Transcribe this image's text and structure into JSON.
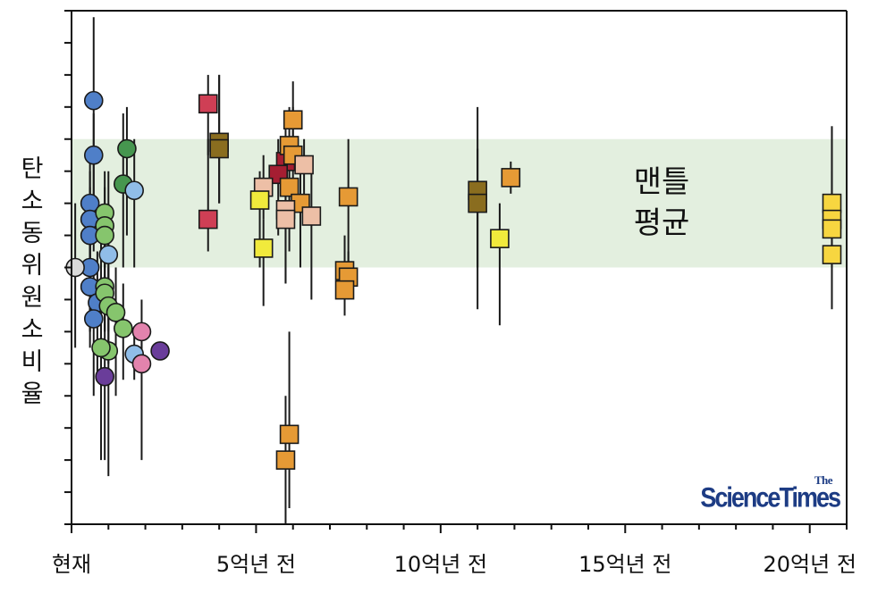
{
  "chart_data": {
    "type": "scatter",
    "title": "",
    "ylabel": "탄소동위원소비율",
    "ylabel_chars": [
      "탄",
      "소",
      "동",
      "위",
      "원",
      "소",
      "비",
      "율"
    ],
    "xlabel": "",
    "x_unit": "억년 전 (hundred million years ago)",
    "xlim": [
      0,
      21
    ],
    "ylim": [
      -8,
      8
    ],
    "y_ticks": [
      -8,
      -7,
      -6,
      -5,
      -4,
      -3,
      -2,
      -1,
      0,
      1,
      2,
      3,
      4,
      5,
      6,
      7,
      8
    ],
    "x_ticks": [
      {
        "x": 0,
        "label": "현재"
      },
      {
        "x": 5,
        "label": "5억년 전"
      },
      {
        "x": 10,
        "label": "10억년 전"
      },
      {
        "x": 15,
        "label": "15억년 전"
      },
      {
        "x": 20,
        "label": "20억년 전"
      }
    ],
    "band": {
      "y_min": 0,
      "y_max": 4,
      "label_lines": [
        "맨틀",
        "평균"
      ],
      "color": "#e3efdf"
    },
    "series": [
      {
        "marker": "circle",
        "color": "#4f7fc8",
        "points": [
          {
            "x": 0.6,
            "y": 5.2,
            "lo": 1.0,
            "hi": 7.8
          },
          {
            "x": 0.6,
            "y": 3.5,
            "lo": 0.5,
            "hi": 4.8
          },
          {
            "x": 0.5,
            "y": 2.0,
            "lo": 0.0,
            "hi": 3.5
          },
          {
            "x": 0.5,
            "y": 1.5,
            "lo": -1.0,
            "hi": 3.0
          },
          {
            "x": 0.5,
            "y": 1.0,
            "lo": -2.0,
            "hi": 2.5
          },
          {
            "x": 0.5,
            "y": 0.0,
            "lo": -2.0,
            "hi": 1.5
          },
          {
            "x": 0.5,
            "y": -0.6,
            "lo": -2.5,
            "hi": 1.0
          },
          {
            "x": 0.7,
            "y": -1.1,
            "lo": -3.5,
            "hi": 0.5
          },
          {
            "x": 0.6,
            "y": -1.6,
            "lo": -4.0,
            "hi": 0.0
          }
        ]
      },
      {
        "marker": "circle",
        "color": "#86c56d",
        "points": [
          {
            "x": 0.9,
            "y": 1.7,
            "lo": 0.0,
            "hi": 3.0
          },
          {
            "x": 0.9,
            "y": 1.3,
            "lo": 0.0,
            "hi": 2.5
          },
          {
            "x": 0.9,
            "y": 1.0,
            "lo": -0.5,
            "hi": 2.0
          },
          {
            "x": 0.9,
            "y": -0.6,
            "lo": -2.0,
            "hi": 0.5
          },
          {
            "x": 0.9,
            "y": -0.8,
            "lo": -2.0,
            "hi": 0.5
          },
          {
            "x": 1.0,
            "y": -1.2,
            "lo": -3.0,
            "hi": 0.0
          },
          {
            "x": 1.2,
            "y": -1.4,
            "lo": -4.0,
            "hi": 0.0
          },
          {
            "x": 1.4,
            "y": -1.9,
            "lo": -3.5,
            "hi": -0.5
          },
          {
            "x": 1.0,
            "y": -2.6,
            "lo": -6.5,
            "hi": 3.0
          },
          {
            "x": 0.8,
            "y": -2.5,
            "lo": -6.0,
            "hi": 1.0
          }
        ]
      },
      {
        "marker": "circle",
        "color": "#46964f",
        "points": [
          {
            "x": 1.5,
            "y": 3.7,
            "lo": 1.0,
            "hi": 5.0
          },
          {
            "x": 1.4,
            "y": 2.6,
            "lo": 0.0,
            "hi": 4.8
          }
        ]
      },
      {
        "marker": "circle",
        "color": "#90bde8",
        "points": [
          {
            "x": 1.7,
            "y": 2.4,
            "lo": 0.0,
            "hi": 4.0
          },
          {
            "x": 1.0,
            "y": 0.4,
            "lo": -2.0,
            "hi": 2.0
          },
          {
            "x": 1.7,
            "y": -2.7,
            "lo": -3.5,
            "hi": -2.0
          }
        ]
      },
      {
        "marker": "circle",
        "color": "#e283ad",
        "points": [
          {
            "x": 1.9,
            "y": -2.0,
            "lo": -3.0,
            "hi": -1.0
          },
          {
            "x": 1.9,
            "y": -3.0,
            "lo": -6.0,
            "hi": -2.0
          }
        ]
      },
      {
        "marker": "circle",
        "color": "#6a3d9a",
        "points": [
          {
            "x": 2.4,
            "y": -2.6,
            "lo": -2.6,
            "hi": -2.6
          },
          {
            "x": 0.9,
            "y": -3.4,
            "lo": -6.0,
            "hi": -1.0
          }
        ]
      },
      {
        "marker": "circle",
        "color": "#d9d9d9",
        "points": [
          {
            "x": 0.1,
            "y": 0.0,
            "lo": -2.5,
            "hi": 2.0
          }
        ]
      },
      {
        "marker": "square",
        "color": "#cf3f55",
        "points": [
          {
            "x": 3.7,
            "y": 5.1,
            "lo": 3.5,
            "hi": 6.0
          },
          {
            "x": 3.7,
            "y": 1.5,
            "lo": 0.5,
            "hi": 4.0
          }
        ]
      },
      {
        "marker": "square",
        "color": "#a51e32",
        "points": [
          {
            "x": 5.8,
            "y": 3.3,
            "lo": 2.5,
            "hi": 4.5
          },
          {
            "x": 5.6,
            "y": 2.9,
            "lo": 1.0,
            "hi": 4.0
          }
        ]
      },
      {
        "marker": "square",
        "color": "#8a6d1f",
        "points": [
          {
            "x": 4.0,
            "y": 3.9,
            "lo": 2.0,
            "hi": 6.0
          },
          {
            "x": 4.0,
            "y": 3.7,
            "lo": 2.0,
            "hi": 6.0
          },
          {
            "x": 11.0,
            "y": 2.4,
            "lo": -1.3,
            "hi": 3.7
          },
          {
            "x": 11.0,
            "y": 2.0,
            "lo": 0.0,
            "hi": 5.0
          }
        ]
      },
      {
        "marker": "square",
        "color": "#e69a35",
        "points": [
          {
            "x": 6.0,
            "y": 4.6,
            "lo": 3.0,
            "hi": 5.8
          },
          {
            "x": 5.9,
            "y": 3.8,
            "lo": 2.5,
            "hi": 5.0
          },
          {
            "x": 6.0,
            "y": 3.5,
            "lo": 2.5,
            "hi": 5.0
          },
          {
            "x": 5.9,
            "y": 2.5,
            "lo": 0.5,
            "hi": 4.0
          },
          {
            "x": 6.2,
            "y": 2.0,
            "lo": 0.0,
            "hi": 3.0
          },
          {
            "x": 7.5,
            "y": 2.2,
            "lo": -1.0,
            "hi": 4.0
          },
          {
            "x": 11.9,
            "y": 2.8,
            "lo": 2.3,
            "hi": 3.3
          },
          {
            "x": 7.4,
            "y": -0.1,
            "lo": -1.0,
            "hi": 1.0
          },
          {
            "x": 7.5,
            "y": -0.3,
            "lo": -1.0,
            "hi": 0.5
          },
          {
            "x": 7.4,
            "y": -0.7,
            "lo": -1.5,
            "hi": 0.0
          },
          {
            "x": 5.9,
            "y": -5.2,
            "lo": -7.5,
            "hi": -2.0
          },
          {
            "x": 5.8,
            "y": -6.0,
            "lo": -8.0,
            "hi": -4.0
          }
        ]
      },
      {
        "marker": "square",
        "color": "#edbfa6",
        "points": [
          {
            "x": 5.2,
            "y": 2.5,
            "lo": 1.5,
            "hi": 3.5
          },
          {
            "x": 6.3,
            "y": 3.2,
            "lo": 1.5,
            "hi": 4.0
          },
          {
            "x": 5.8,
            "y": 1.8,
            "lo": -0.5,
            "hi": 3.0
          },
          {
            "x": 5.8,
            "y": 1.5,
            "lo": -0.5,
            "hi": 3.0
          },
          {
            "x": 6.5,
            "y": 1.6,
            "lo": -1.0,
            "hi": 3.0
          }
        ]
      },
      {
        "marker": "square",
        "color": "#f1ea3c",
        "points": [
          {
            "x": 5.1,
            "y": 2.1,
            "lo": 0.0,
            "hi": 3.0
          },
          {
            "x": 5.2,
            "y": 0.6,
            "lo": -1.2,
            "hi": 1.5
          },
          {
            "x": 11.6,
            "y": 0.9,
            "lo": -1.8,
            "hi": 2.0
          }
        ]
      },
      {
        "marker": "square",
        "color": "#f7d640",
        "points": [
          {
            "x": 20.6,
            "y": 2.0,
            "lo": 1.0,
            "hi": 4.4
          },
          {
            "x": 20.6,
            "y": 1.5,
            "lo": 0.0,
            "hi": 4.4
          },
          {
            "x": 20.6,
            "y": 1.2,
            "lo": 0.0,
            "hi": 3.0
          },
          {
            "x": 20.6,
            "y": 0.4,
            "lo": -1.3,
            "hi": 1.0
          }
        ]
      }
    ]
  },
  "logo": {
    "the": "The",
    "main": "ScienceTimes"
  }
}
